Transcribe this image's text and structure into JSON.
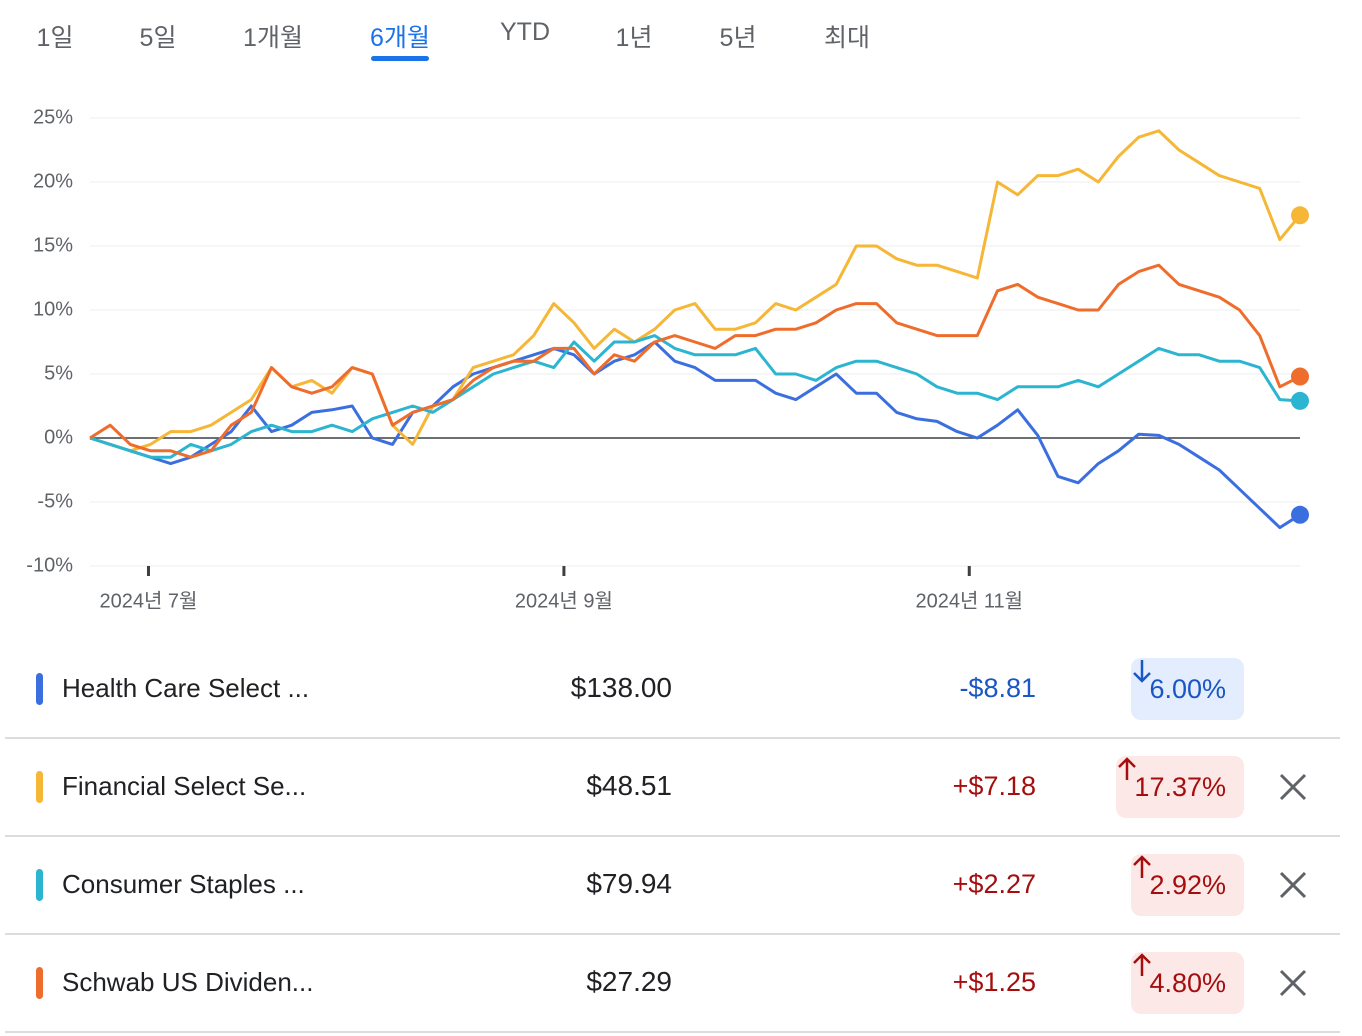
{
  "tabs": {
    "items": [
      "1일",
      "5일",
      "1개월",
      "6개월",
      "YTD",
      "1년",
      "5년",
      "최대"
    ],
    "selected": 3
  },
  "chart_data": {
    "type": "line",
    "xlim": [
      0,
      60
    ],
    "xticks": [
      {
        "value": 2.9,
        "label": "2024년 7월"
      },
      {
        "value": 23.5,
        "label": "2024년 9월"
      },
      {
        "value": 43.6,
        "label": "2024년 11월"
      }
    ],
    "ylim": [
      -10,
      25
    ],
    "yticks": [
      {
        "value": 25,
        "label": "25%"
      },
      {
        "value": 20,
        "label": "20%"
      },
      {
        "value": 15,
        "label": "15%"
      },
      {
        "value": 10,
        "label": "10%"
      },
      {
        "value": 5,
        "label": "5%"
      },
      {
        "value": 0,
        "label": "0%"
      },
      {
        "value": -5,
        "label": "-5%"
      },
      {
        "value": -10,
        "label": "-10%"
      }
    ],
    "grid": true,
    "series": [
      {
        "name": "Health Care Select ...",
        "color": "#3b6fe0",
        "values": [
          0,
          -0.5,
          -1,
          -1.5,
          -2,
          -1.5,
          -0.5,
          0.5,
          2.5,
          0.5,
          1,
          2,
          2.2,
          2.5,
          0,
          -0.5,
          2,
          2.5,
          4,
          5,
          5.5,
          6,
          6.5,
          7,
          6.5,
          5,
          6,
          6.5,
          7.5,
          6,
          5.5,
          4.5,
          4.5,
          4.5,
          3.5,
          3,
          4,
          5,
          3.5,
          3.5,
          2,
          1.5,
          1.3,
          0.5,
          0,
          1,
          2.2,
          0.2,
          -3,
          -3.5,
          -2,
          -1,
          0.3,
          0.2,
          -0.5,
          -1.5,
          -2.5,
          -4,
          -5.5,
          -7,
          -6
        ]
      },
      {
        "name": "Financial Select Se...",
        "color": "#f6b636",
        "values": [
          0,
          -0.5,
          -1,
          -0.5,
          0.5,
          0.5,
          1,
          2,
          3,
          5.5,
          4,
          4.5,
          3.5,
          5.5,
          5,
          1,
          -0.5,
          2.5,
          3,
          5.5,
          6,
          6.5,
          8,
          10.5,
          9,
          7,
          8.5,
          7.5,
          8.5,
          10,
          10.5,
          8.5,
          8.5,
          9,
          10.5,
          10,
          11,
          12,
          15,
          15,
          14,
          13.5,
          13.5,
          13,
          12.5,
          20,
          19,
          20.5,
          20.5,
          21,
          20,
          22,
          23.5,
          24,
          22.5,
          21.5,
          20.5,
          20,
          19.5,
          15.5,
          17.4
        ]
      },
      {
        "name": "Consumer Staples ...",
        "color": "#2bb5d0",
        "values": [
          0,
          -0.5,
          -1,
          -1.5,
          -1.5,
          -0.5,
          -1,
          -0.5,
          0.5,
          1,
          0.5,
          0.5,
          1,
          0.5,
          1.5,
          2,
          2.5,
          2,
          3,
          4,
          5,
          5.5,
          6,
          5.5,
          7.5,
          6,
          7.5,
          7.5,
          8,
          7,
          6.5,
          6.5,
          6.5,
          7,
          5,
          5,
          4.5,
          5.5,
          6,
          6,
          5.5,
          5,
          4,
          3.5,
          3.5,
          3,
          4,
          4,
          4,
          4.5,
          4,
          5,
          6,
          7,
          6.5,
          6.5,
          6,
          6,
          5.5,
          3,
          2.9
        ]
      },
      {
        "name": "Schwab US Dividen...",
        "color": "#ef6d2c",
        "values": [
          0,
          1,
          -0.5,
          -1,
          -1,
          -1.5,
          -1,
          1,
          2,
          5.5,
          4,
          3.5,
          4,
          5.5,
          5,
          1,
          2,
          2.5,
          3,
          4.5,
          5.5,
          6,
          6,
          7,
          7,
          5,
          6.5,
          6,
          7.5,
          8,
          7.5,
          7,
          8,
          8,
          8.5,
          8.5,
          9,
          10,
          10.5,
          10.5,
          9,
          8.5,
          8,
          8,
          8,
          11.5,
          12,
          11,
          10.5,
          10,
          10,
          12,
          13,
          13.5,
          12,
          11.5,
          11,
          10,
          8,
          4,
          4.8
        ]
      }
    ]
  },
  "rows": [
    {
      "price": "$138.00",
      "change": "-$8.81",
      "percent": "6.00%",
      "trend": "down",
      "removable": false
    },
    {
      "price": "$48.51",
      "change": "+$7.18",
      "percent": "17.37%",
      "trend": "up",
      "removable": true
    },
    {
      "price": "$79.94",
      "change": "+$2.27",
      "percent": "2.92%",
      "trend": "up",
      "removable": true
    },
    {
      "price": "$27.29",
      "change": "+$1.25",
      "percent": "4.80%",
      "trend": "up",
      "removable": true
    }
  ]
}
